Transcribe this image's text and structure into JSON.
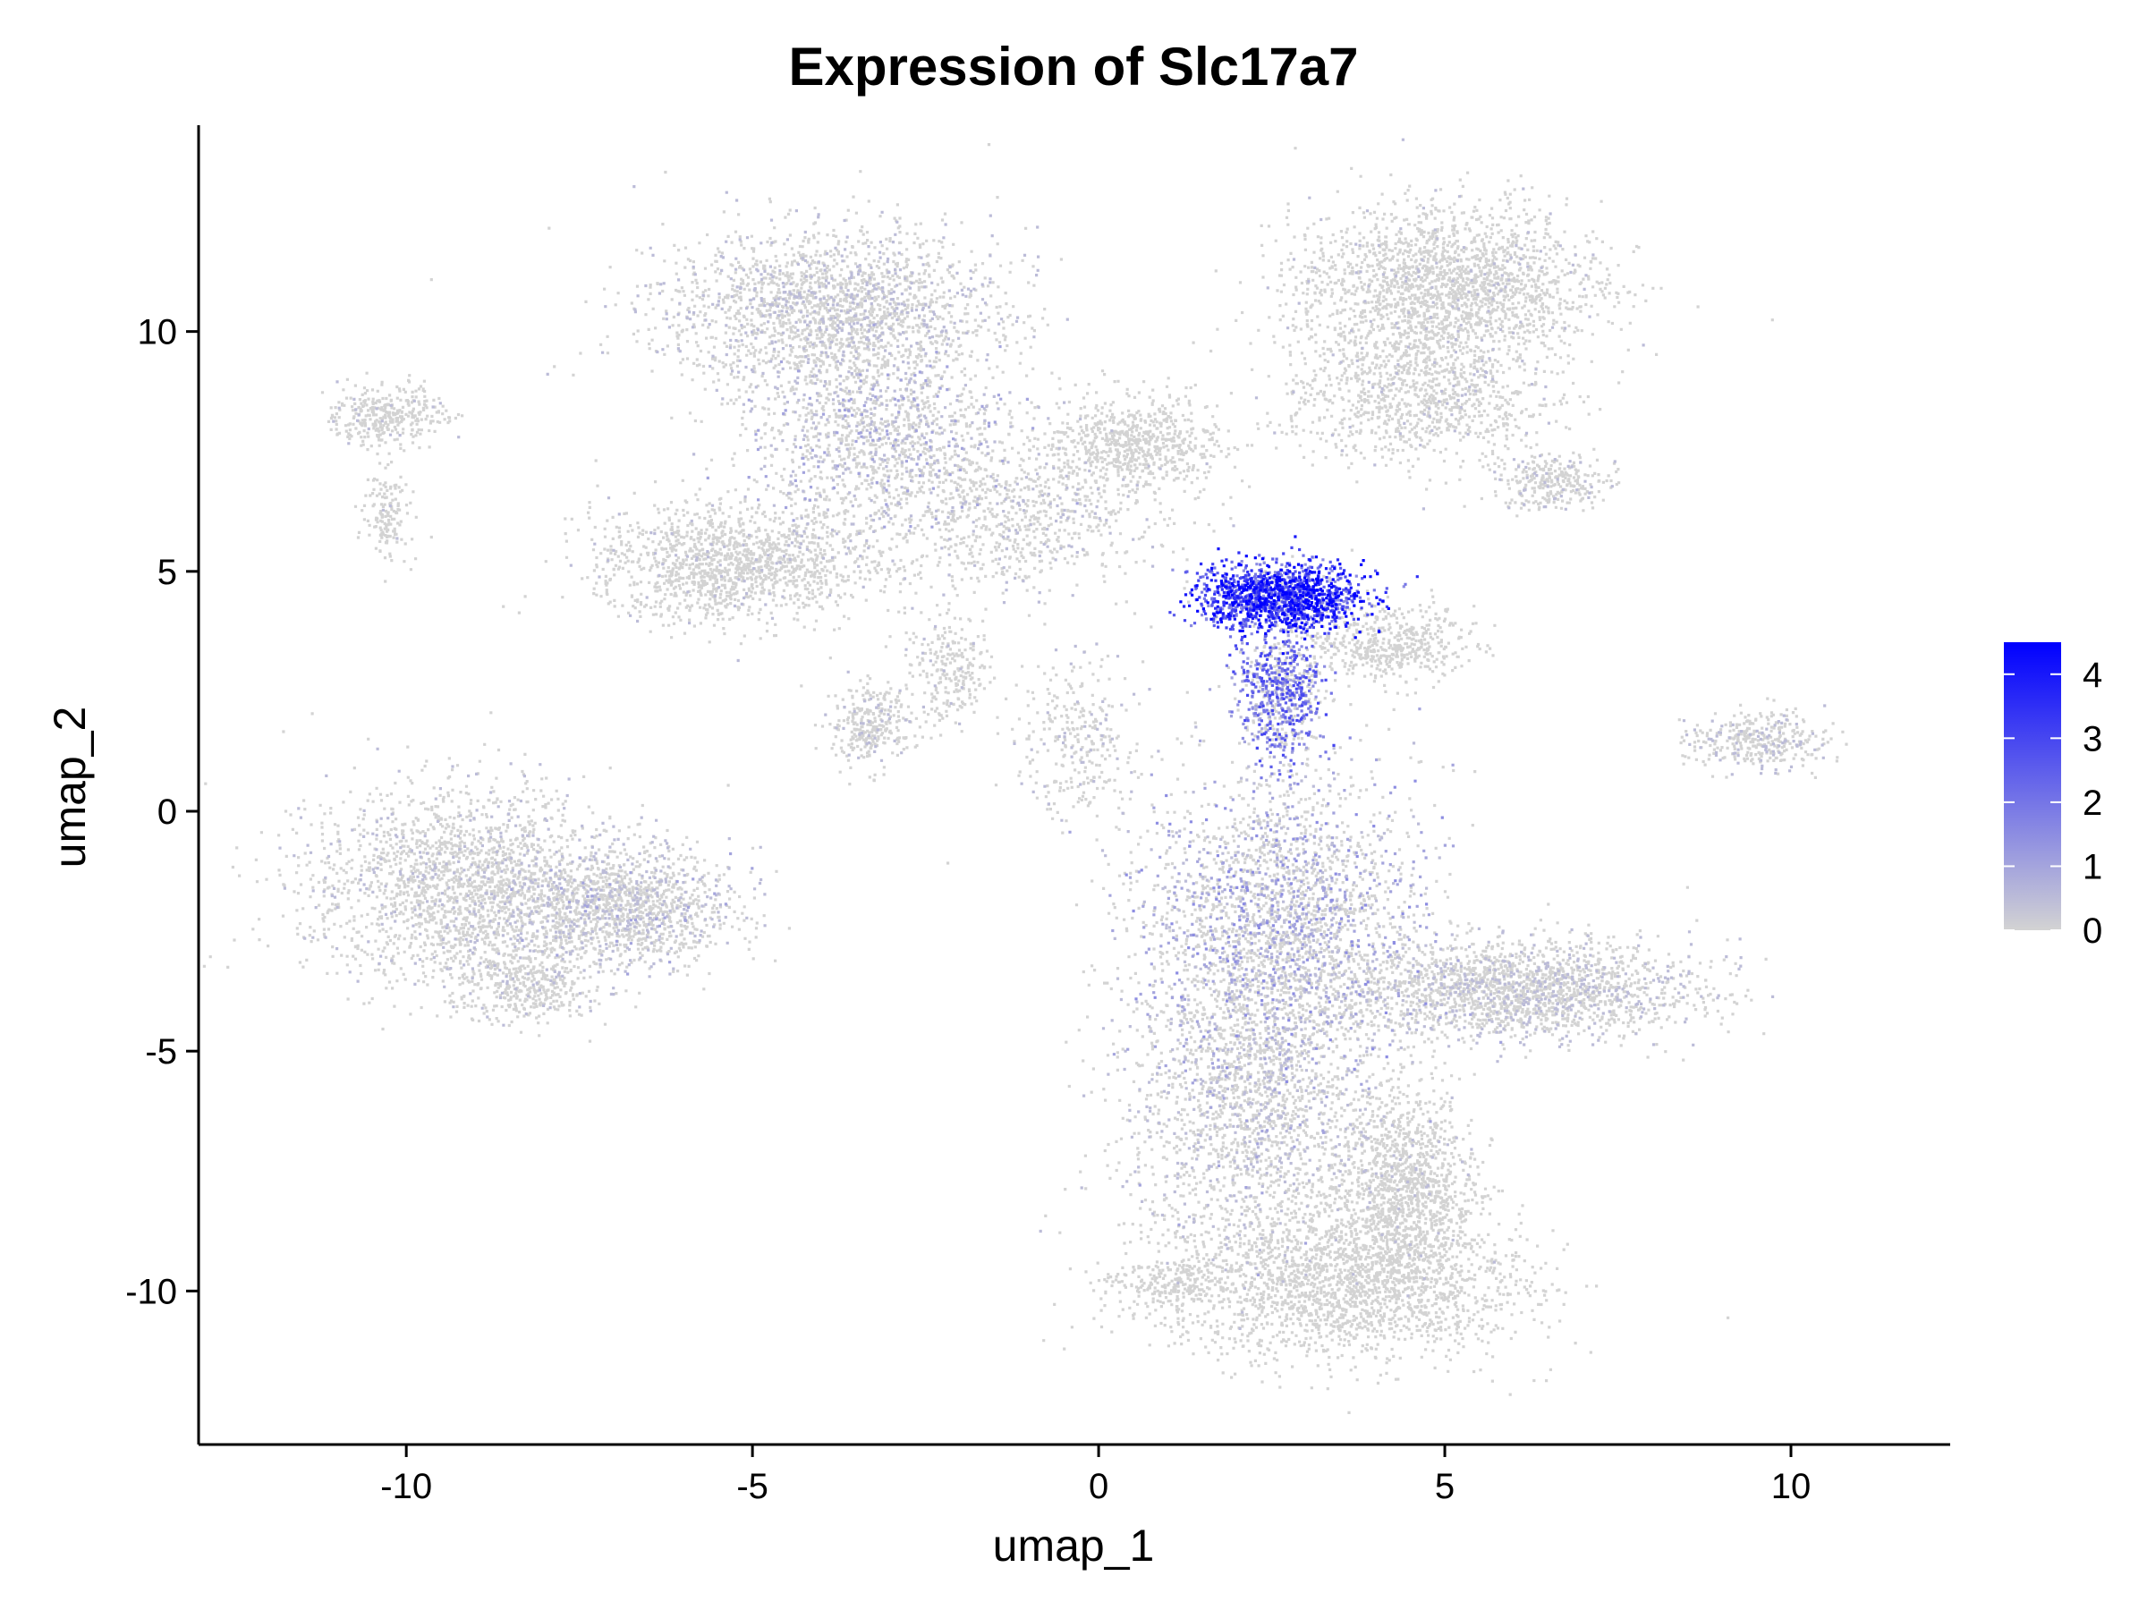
{
  "chart_data": {
    "type": "scatter",
    "title": "Expression of Slc17a7",
    "xlabel": "umap_1",
    "ylabel": "umap_2",
    "xlim": [
      -13,
      12.3
    ],
    "ylim": [
      -13.2,
      14.3
    ],
    "x_ticks": [
      -10,
      -5,
      0,
      5,
      10
    ],
    "y_ticks": [
      -10,
      -5,
      0,
      5,
      10
    ],
    "x_tick_labels": [
      "-10",
      "-5",
      "0",
      "5",
      "10"
    ],
    "y_tick_labels": [
      "-10",
      "-5",
      "0",
      "5",
      "10"
    ],
    "grid": false,
    "legend_position": "right",
    "color_scale": {
      "low": "#d3d3d3",
      "high": "#0000ff",
      "min": 0,
      "max": 4.5,
      "ticks": [
        0,
        1,
        2,
        3,
        4
      ],
      "tick_labels": [
        "0",
        "1",
        "2",
        "3",
        "4"
      ]
    },
    "clusters": [
      {
        "x": 2.6,
        "y": -2.2,
        "sx": 1.0,
        "sy": 1.5,
        "n": 5000,
        "expr": 0.9
      },
      {
        "x": 2.2,
        "y": -6.0,
        "sx": 0.9,
        "sy": 1.6,
        "n": 3500,
        "expr": 0.5
      },
      {
        "x": 3.5,
        "y": -9.8,
        "sx": 1.3,
        "sy": 0.8,
        "n": 4200,
        "expr": 0.15
      },
      {
        "x": 4.4,
        "y": -7.8,
        "sx": 0.5,
        "sy": 1.0,
        "n": 1200,
        "expr": 0.2
      },
      {
        "x": 6.0,
        "y": -3.7,
        "sx": 1.3,
        "sy": 0.5,
        "n": 2000,
        "expr": 0.4
      },
      {
        "x": 2.6,
        "y": 4.5,
        "sx": 0.6,
        "sy": 0.35,
        "n": 1500,
        "expr": 3.2
      },
      {
        "x": 2.6,
        "y": 2.5,
        "sx": 0.3,
        "sy": 0.7,
        "n": 700,
        "expr": 2.0
      },
      {
        "x": 4.2,
        "y": 3.5,
        "sx": 0.6,
        "sy": 0.4,
        "n": 500,
        "expr": 0.1
      },
      {
        "x": -9.2,
        "y": -1.5,
        "sx": 1.1,
        "sy": 1.0,
        "n": 4000,
        "expr": 0.3
      },
      {
        "x": -6.9,
        "y": -2.0,
        "sx": 0.8,
        "sy": 0.6,
        "n": 1300,
        "expr": 0.5
      },
      {
        "x": -8.3,
        "y": -3.6,
        "sx": 0.5,
        "sy": 0.4,
        "n": 400,
        "expr": 0.2
      },
      {
        "x": -3.9,
        "y": 10.5,
        "sx": 1.2,
        "sy": 0.8,
        "n": 2500,
        "expr": 0.4
      },
      {
        "x": -3.2,
        "y": 8.0,
        "sx": 0.9,
        "sy": 0.9,
        "n": 1200,
        "expr": 0.6
      },
      {
        "x": -5.3,
        "y": 5.2,
        "sx": 1.0,
        "sy": 0.6,
        "n": 1400,
        "expr": 0.2
      },
      {
        "x": -1.5,
        "y": 6.2,
        "sx": 1.2,
        "sy": 0.8,
        "n": 900,
        "expr": 0.3
      },
      {
        "x": -3.3,
        "y": 1.8,
        "sx": 0.3,
        "sy": 0.4,
        "n": 300,
        "expr": 0.3
      },
      {
        "x": -2.2,
        "y": 3.0,
        "sx": 0.3,
        "sy": 0.6,
        "n": 250,
        "expr": 0.2
      },
      {
        "x": 0.5,
        "y": 7.7,
        "sx": 0.6,
        "sy": 0.5,
        "n": 700,
        "expr": 0.1
      },
      {
        "x": 5.0,
        "y": 11.0,
        "sx": 1.1,
        "sy": 0.8,
        "n": 2200,
        "expr": 0.2
      },
      {
        "x": 4.6,
        "y": 8.7,
        "sx": 1.0,
        "sy": 0.7,
        "n": 1000,
        "expr": 0.2
      },
      {
        "x": 6.5,
        "y": 6.9,
        "sx": 0.4,
        "sy": 0.3,
        "n": 300,
        "expr": 0.3
      },
      {
        "x": -10.3,
        "y": 8.3,
        "sx": 0.4,
        "sy": 0.3,
        "n": 350,
        "expr": 0.2
      },
      {
        "x": -10.3,
        "y": 6.2,
        "sx": 0.15,
        "sy": 0.5,
        "n": 150,
        "expr": 0.2
      },
      {
        "x": 9.5,
        "y": 1.5,
        "sx": 0.5,
        "sy": 0.3,
        "n": 350,
        "expr": 0.4
      },
      {
        "x": -0.3,
        "y": 1.5,
        "sx": 0.4,
        "sy": 0.8,
        "n": 300,
        "expr": 0.3
      },
      {
        "x": 1.0,
        "y": -9.8,
        "sx": 0.5,
        "sy": 0.3,
        "n": 200,
        "expr": 0.1
      }
    ]
  }
}
